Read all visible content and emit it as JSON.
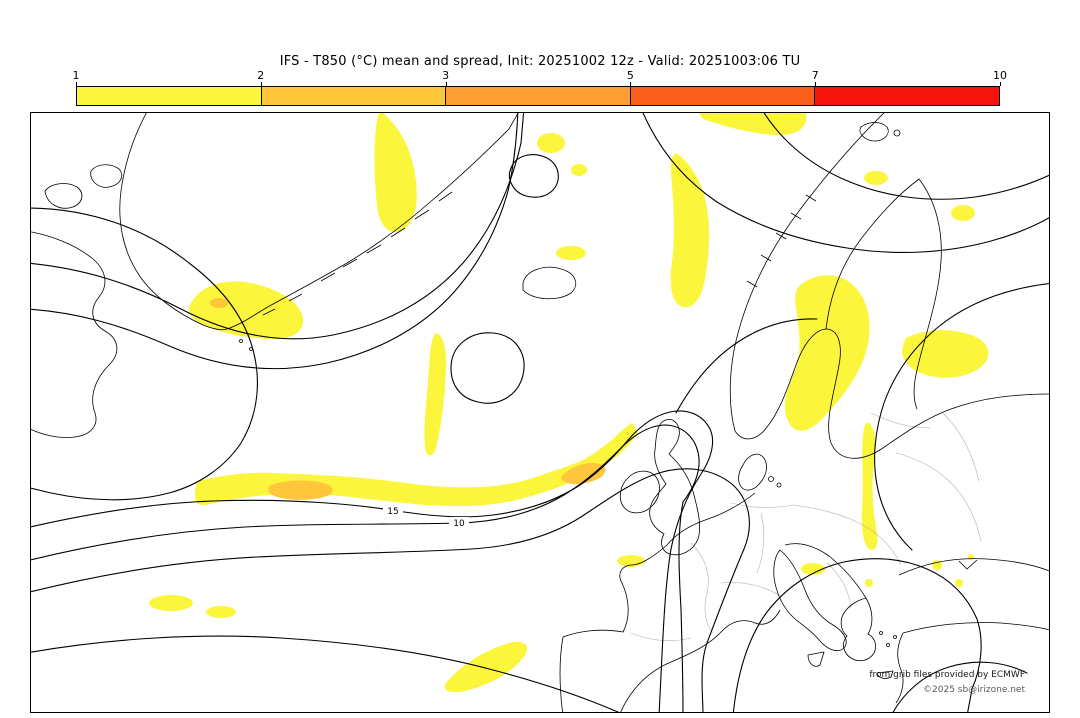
{
  "header": {
    "title": "IFS - T850 (°C) mean and spread, Init: 20251002 12z - Valid: 20251003:06 TU"
  },
  "colorbar": {
    "tick_labels": [
      "1",
      "2",
      "3",
      "5",
      "7",
      "10"
    ],
    "colors": [
      "#fbf53c",
      "#fdc63b",
      "#fc9e33",
      "#fb5d1b",
      "#f5130d"
    ]
  },
  "map": {
    "contour_labels": [
      "15",
      "10"
    ],
    "spread_fills": {
      "low": "#fbf53c",
      "mid": "#fdc63b"
    },
    "credits": {
      "line1": "from grib files provided by ECMWF",
      "line2": "©2025 sb@irizone.net"
    }
  }
}
